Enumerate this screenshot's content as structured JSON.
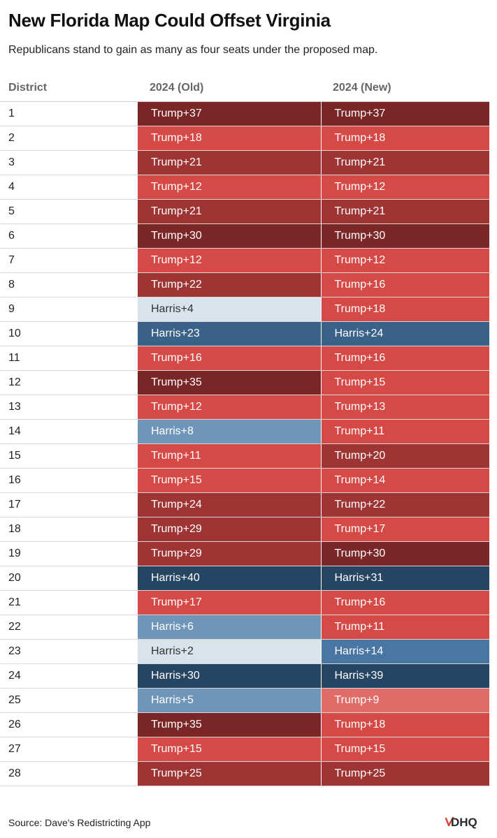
{
  "header": {
    "title": "New Florida Map Could Offset Virginia",
    "subtitle": "Republicans stand to gain as many as four seats under the proposed map."
  },
  "footer": {
    "source": "Source: Dave's Redistricting App",
    "logo_text": "DDHQ"
  },
  "colors": {
    "trump_35_plus": "#7a2526",
    "trump_30": "#7b2727",
    "trump_19_29": "#9e3534",
    "trump_10_18": "#d54a46",
    "trump_under_10": "#df6c67",
    "harris_under_5": "#d8e3ec",
    "harris_5_9": "#6f96b8",
    "harris_10_19": "#4a76a3",
    "harris_20_29": "#3a6289",
    "harris_30_plus": "#264562"
  },
  "chart_data": {
    "type": "table",
    "columns": [
      "District",
      "2024 (Old)",
      "2024 (New)"
    ],
    "rows": [
      {
        "district": "1",
        "old": "Trump+37",
        "new": "Trump+37"
      },
      {
        "district": "2",
        "old": "Trump+18",
        "new": "Trump+18"
      },
      {
        "district": "3",
        "old": "Trump+21",
        "new": "Trump+21"
      },
      {
        "district": "4",
        "old": "Trump+12",
        "new": "Trump+12"
      },
      {
        "district": "5",
        "old": "Trump+21",
        "new": "Trump+21"
      },
      {
        "district": "6",
        "old": "Trump+30",
        "new": "Trump+30"
      },
      {
        "district": "7",
        "old": "Trump+12",
        "new": "Trump+12"
      },
      {
        "district": "8",
        "old": "Trump+22",
        "new": "Trump+16"
      },
      {
        "district": "9",
        "old": "Harris+4",
        "new": "Trump+18"
      },
      {
        "district": "10",
        "old": "Harris+23",
        "new": "Harris+24"
      },
      {
        "district": "11",
        "old": "Trump+16",
        "new": "Trump+16"
      },
      {
        "district": "12",
        "old": "Trump+35",
        "new": "Trump+15"
      },
      {
        "district": "13",
        "old": "Trump+12",
        "new": "Trump+13"
      },
      {
        "district": "14",
        "old": "Harris+8",
        "new": "Trump+11"
      },
      {
        "district": "15",
        "old": "Trump+11",
        "new": "Trump+20"
      },
      {
        "district": "16",
        "old": "Trump+15",
        "new": "Trump+14"
      },
      {
        "district": "17",
        "old": "Trump+24",
        "new": "Trump+22"
      },
      {
        "district": "18",
        "old": "Trump+29",
        "new": "Trump+17"
      },
      {
        "district": "19",
        "old": "Trump+29",
        "new": "Trump+30"
      },
      {
        "district": "20",
        "old": "Harris+40",
        "new": "Harris+31"
      },
      {
        "district": "21",
        "old": "Trump+17",
        "new": "Trump+16"
      },
      {
        "district": "22",
        "old": "Harris+6",
        "new": "Trump+11"
      },
      {
        "district": "23",
        "old": "Harris+2",
        "new": "Harris+14"
      },
      {
        "district": "24",
        "old": "Harris+30",
        "new": "Harris+39"
      },
      {
        "district": "25",
        "old": "Harris+5",
        "new": "Trump+9"
      },
      {
        "district": "26",
        "old": "Trump+35",
        "new": "Trump+18"
      },
      {
        "district": "27",
        "old": "Trump+15",
        "new": "Trump+15"
      },
      {
        "district": "28",
        "old": "Trump+25",
        "new": "Trump+25"
      }
    ]
  }
}
